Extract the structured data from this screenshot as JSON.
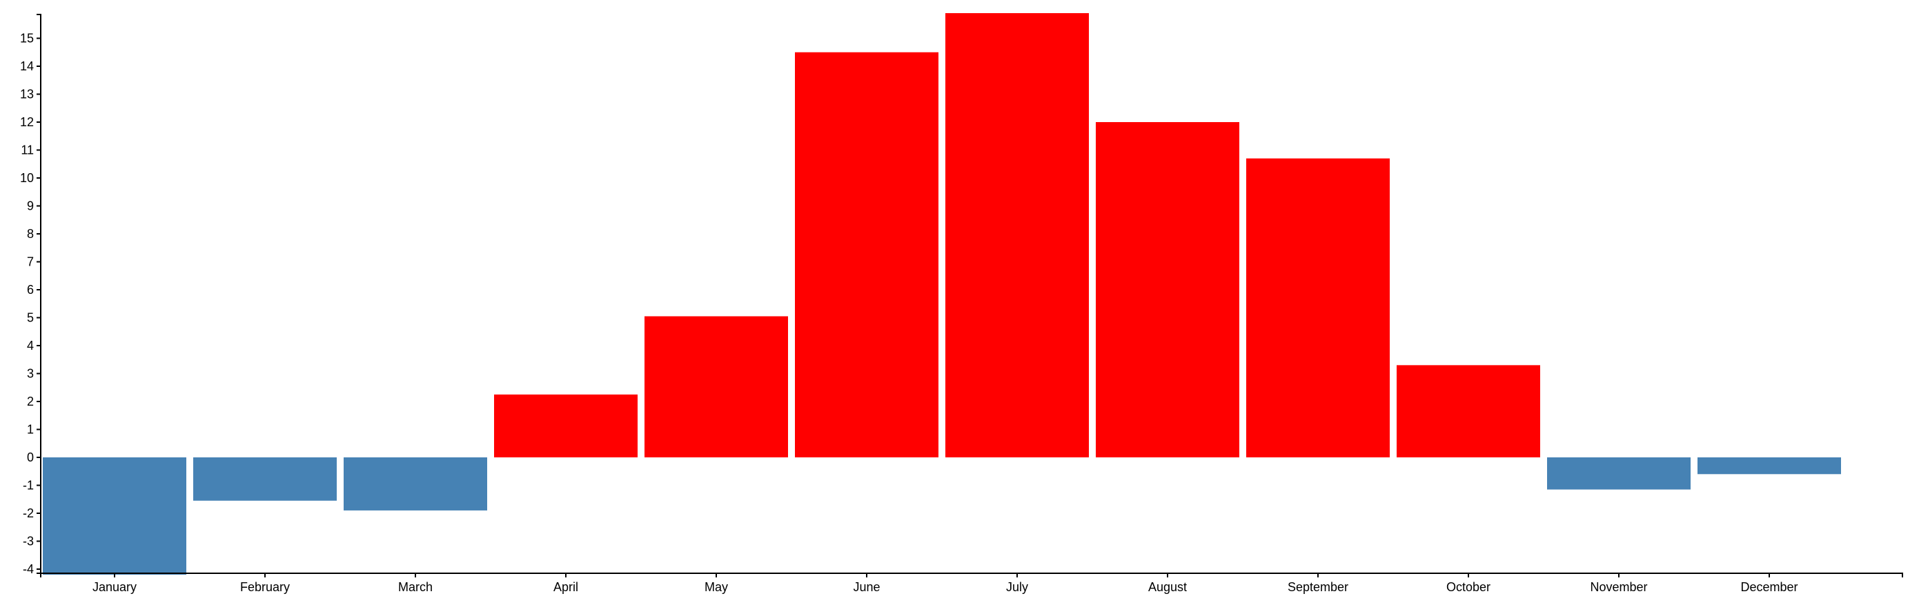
{
  "chart_data": {
    "type": "bar",
    "title": "",
    "xlabel": "",
    "ylabel": "",
    "categories": [
      "January",
      "February",
      "March",
      "April",
      "May",
      "June",
      "July",
      "August",
      "September",
      "October",
      "November",
      "December"
    ],
    "values": [
      -4.2,
      -1.55,
      -1.9,
      2.25,
      5.05,
      14.5,
      15.9,
      12.0,
      10.7,
      3.3,
      -1.15,
      -0.6
    ],
    "ylim": [
      -4.2,
      16.0
    ],
    "yticks": [
      -4,
      -3,
      -2,
      -1,
      0,
      1,
      2,
      3,
      4,
      5,
      6,
      7,
      8,
      9,
      10,
      11,
      12,
      13,
      14,
      15
    ],
    "grid": false,
    "colors": {
      "positive": "#ff0000",
      "negative": "#4682b4",
      "axis": "#000000"
    }
  }
}
